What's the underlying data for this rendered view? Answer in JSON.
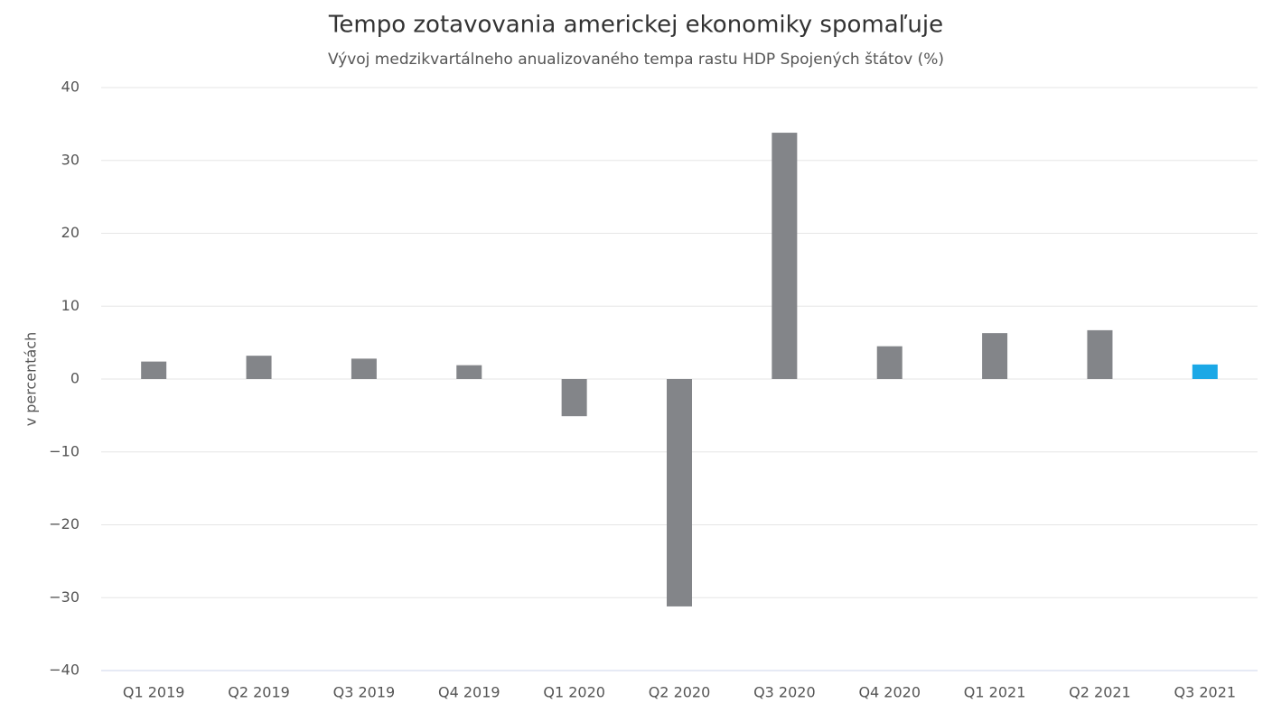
{
  "chart_data": {
    "type": "bar",
    "title": "Tempo zotavovania americkej ekonomiky spomaľuje",
    "subtitle": "Vývoj medzikvartálneho anualizovaného tempa rastu HDP Spojených štátov (%)",
    "y_label": "v percentách",
    "categories": [
      "Q1 2019",
      "Q2 2019",
      "Q3 2019",
      "Q4 2019",
      "Q1 2020",
      "Q2 2020",
      "Q3 2020",
      "Q4 2020",
      "Q1 2021",
      "Q2 2021",
      "Q3 2021"
    ],
    "values": [
      2.4,
      3.2,
      2.8,
      1.9,
      -5.1,
      -31.2,
      33.8,
      4.5,
      6.3,
      6.7,
      2.0
    ],
    "colors": [
      "#838589",
      "#838589",
      "#838589",
      "#838589",
      "#838589",
      "#838589",
      "#838589",
      "#838589",
      "#838589",
      "#838589",
      "#1ba8e6"
    ],
    "ylim": [
      -40,
      40
    ],
    "yticks": [
      {
        "value": -40,
        "label": "−40"
      },
      {
        "value": -30,
        "label": "−30"
      },
      {
        "value": -20,
        "label": "−20"
      },
      {
        "value": -10,
        "label": "−10"
      },
      0,
      10,
      20,
      30,
      40
    ],
    "grid": true
  }
}
